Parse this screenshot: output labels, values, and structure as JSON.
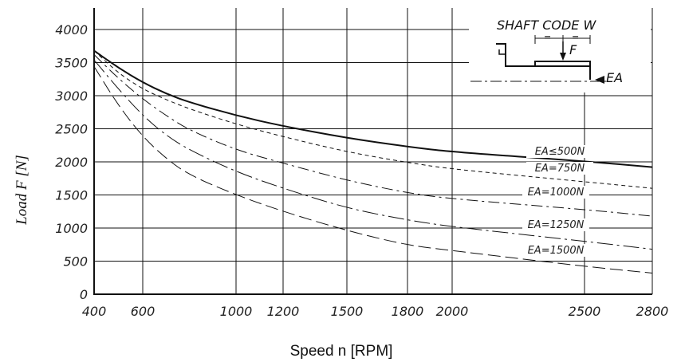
{
  "chart_data": {
    "type": "line",
    "xlabel": "Speed n [RPM]",
    "ylabel": "Load F [N]",
    "xlim": [
      400,
      2800
    ],
    "ylim": [
      0,
      4200
    ],
    "x_ticks": [
      400,
      600,
      1000,
      1200,
      1500,
      1800,
      2000,
      2500,
      2800
    ],
    "y_ticks": [
      0,
      500,
      1000,
      1500,
      2000,
      2500,
      3000,
      3500,
      4000
    ],
    "grid": true,
    "inset": {
      "title": "SHAFT CODE W",
      "force_label": "F",
      "axial_label": "EA",
      "equal_marks": [
        "=",
        "="
      ]
    },
    "series": [
      {
        "name": "EA≤500N",
        "style": "solid",
        "x": [
          400,
          500,
          600,
          700,
          800,
          1000,
          1200,
          1500,
          1800,
          2000,
          2500,
          2800
        ],
        "y": [
          3680,
          3420,
          3200,
          3030,
          2900,
          2700,
          2540,
          2360,
          2230,
          2150,
          2010,
          1920
        ]
      },
      {
        "name": "EA=750N",
        "style": "short-dash",
        "x": [
          400,
          500,
          600,
          700,
          800,
          1000,
          1200,
          1500,
          1800,
          2000,
          2500,
          2800
        ],
        "y": [
          3680,
          3340,
          3100,
          2940,
          2800,
          2570,
          2380,
          2150,
          1990,
          1890,
          1700,
          1600
        ]
      },
      {
        "name": "EA=1000N",
        "style": "dash-dot",
        "x": [
          400,
          500,
          600,
          700,
          800,
          1000,
          1200,
          1500,
          1800,
          2000,
          2500,
          2800
        ],
        "y": [
          3620,
          3260,
          2950,
          2700,
          2480,
          2180,
          1980,
          1720,
          1530,
          1440,
          1280,
          1180
        ]
      },
      {
        "name": "EA=1250N",
        "style": "long-dash-dot",
        "x": [
          400,
          500,
          600,
          700,
          800,
          1000,
          1200,
          1500,
          1800,
          2000,
          2500,
          2800
        ],
        "y": [
          3540,
          3100,
          2700,
          2400,
          2180,
          1850,
          1600,
          1300,
          1120,
          1020,
          800,
          680
        ]
      },
      {
        "name": "EA=1500N",
        "style": "long-dash",
        "x": [
          400,
          500,
          600,
          700,
          800,
          1000,
          1200,
          1500,
          1800,
          2000,
          2500,
          2800
        ],
        "y": [
          3440,
          2850,
          2380,
          2050,
          1800,
          1500,
          1250,
          960,
          740,
          660,
          420,
          320
        ]
      }
    ],
    "curve_labels": [
      "EA≤500N",
      "EA=750N",
      "EA=1000N",
      "EA=1250N",
      "EA=1500N"
    ]
  }
}
